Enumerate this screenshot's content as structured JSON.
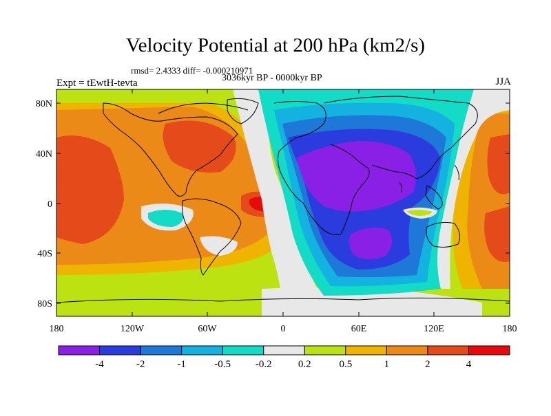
{
  "title": "Velocity Potential at 200 hPa (km2/s)",
  "rmsd_line": "rmsd= 2.4333 diff= -0.000210971",
  "period": "3036kyr BP - 0000kyr BP",
  "expt": "Expt = tEwtH-tevta",
  "season": "JJA",
  "chart_data": {
    "type": "heatmap",
    "title": "Velocity Potential at 200 hPa (km2/s)",
    "x_ticks": [
      "180",
      "120W",
      "60W",
      "0",
      "60E",
      "120E",
      "180"
    ],
    "y_ticks": [
      "80N",
      "40N",
      "0",
      "40S",
      "80S"
    ],
    "xlim": [
      -180,
      180
    ],
    "ylim": [
      -90,
      90
    ],
    "colorbar": {
      "labels": [
        "-4",
        "-2",
        "-1",
        "-0.5",
        "-0.2",
        "0.2",
        "0.5",
        "1",
        "2",
        "4"
      ],
      "colors": [
        "#8a1fe6",
        "#2b3cde",
        "#1d78d8",
        "#14b2e0",
        "#12dcc6",
        "#e8e8e8",
        "#bce212",
        "#eeb400",
        "#ec8a18",
        "#e44a1a",
        "#e80a0a"
      ]
    },
    "regions": [
      {
        "name": "negative-bowl",
        "sign": "negative",
        "min_level": "-4",
        "center_lon": 45,
        "center_lat": 10
      },
      {
        "name": "positive-pacific",
        "sign": "positive",
        "max_level": "4",
        "center_lon": -150,
        "center_lat": 15
      },
      {
        "name": "positive-atlantic",
        "sign": "positive",
        "max_level": "4",
        "center_lon": -20,
        "center_lat": 2
      },
      {
        "name": "positive-west-pacific",
        "sign": "positive",
        "max_level": "4",
        "center_lon": 165,
        "center_lat": 40
      },
      {
        "name": "negative-pocket-east-pacific",
        "sign": "negative",
        "min_level": "-0.5",
        "center_lon": -100,
        "center_lat": -15
      }
    ]
  }
}
